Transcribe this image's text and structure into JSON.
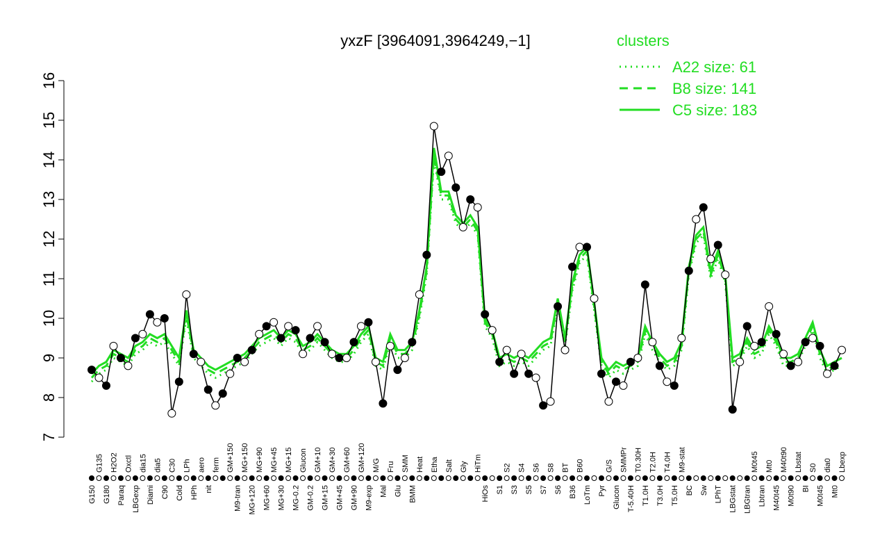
{
  "chart_data": {
    "type": "line",
    "title": "yxzF [3964091,3964249,−1]",
    "legend_title": "clusters",
    "categories": [
      "G150",
      "G135",
      "G180",
      "H2O2",
      "Paraq",
      "Oxctl",
      "LBGexp",
      "dia15",
      "Diami",
      "dia5",
      "C90",
      "C30",
      "Cold",
      "LPh",
      "HPh",
      "aero",
      "nit",
      "ferm",
      null,
      "GM+150",
      "M9-tran",
      "MG+150",
      "MG+120",
      "MG+90",
      "MG+60",
      "MG+45",
      "MG+30",
      "MG+15",
      "MG-0.2",
      "Glucon",
      "GM-0.2",
      "GM+10",
      "GM+15",
      "GM+30",
      "GM+45",
      "GM+60",
      "GM+90",
      "GM+120",
      "M9-exp",
      "M/G",
      "Mal",
      "Fru",
      "Glu",
      "SMM",
      "BMM",
      "Heat",
      null,
      "Etha",
      null,
      "Salt",
      null,
      "Gly",
      null,
      "HiTm",
      "HiOs",
      null,
      "S1",
      "S2",
      "S3",
      "S4",
      "S5",
      "S6",
      "S7",
      "S8",
      "S6",
      "BT",
      "B36",
      "B60",
      "LoTm",
      null,
      "Pyr",
      "G/S",
      "Glucon",
      "SMMPr",
      "T-5.40H",
      "T0.30H",
      "T1.0H",
      "T2.0H",
      "T3.0H",
      "T4.0H",
      "T5.0H",
      "M9-stat",
      "BC",
      null,
      "Sw",
      null,
      "LPhT",
      null,
      "LBGstat",
      null,
      "LBGtran",
      "M0t45",
      "Lbtran",
      "Mt0",
      "M40t45",
      "M40t90",
      "M0t90",
      "Lbstat",
      "BI",
      "S0",
      "M0t45",
      "dia0",
      "Mt0",
      "Lbexp"
    ],
    "values": [
      8.7,
      8.5,
      8.3,
      9.3,
      9.0,
      8.8,
      9.5,
      9.6,
      10.1,
      9.9,
      10.0,
      7.6,
      8.4,
      10.6,
      9.1,
      8.9,
      8.2,
      7.8,
      8.1,
      8.6,
      9.0,
      8.9,
      9.2,
      9.6,
      9.8,
      9.9,
      9.5,
      9.8,
      9.7,
      9.1,
      9.5,
      9.8,
      9.4,
      9.1,
      9.0,
      9.0,
      9.4,
      9.8,
      9.9,
      8.9,
      7.85,
      9.3,
      8.7,
      9.0,
      9.4,
      10.6,
      11.6,
      14.85,
      13.7,
      14.1,
      13.3,
      12.3,
      13.0,
      12.8,
      10.1,
      9.7,
      8.9,
      9.2,
      8.6,
      9.1,
      8.6,
      8.5,
      7.8,
      7.9,
      10.3,
      9.2,
      11.3,
      11.8,
      11.8,
      10.5,
      8.6,
      7.9,
      8.4,
      8.3,
      8.9,
      9.0,
      10.85,
      9.4,
      8.8,
      8.4,
      8.3,
      9.5,
      11.2,
      12.5,
      12.8,
      11.5,
      11.85,
      11.1,
      7.7,
      8.9,
      9.8,
      9.3,
      9.4,
      10.3,
      9.6,
      9.1,
      8.8,
      8.9,
      9.4,
      9.5,
      9.3,
      8.6,
      8.8,
      9.2
    ],
    "series": [
      {
        "name": "A22 size: 61",
        "color": "#22dd22",
        "dash": "dotted",
        "values": [
          8.4,
          8.6,
          8.7,
          9.0,
          8.9,
          8.8,
          9.1,
          9.2,
          9.4,
          9.3,
          9.4,
          9.1,
          8.8,
          10.0,
          9.0,
          8.8,
          8.6,
          8.5,
          8.6,
          8.7,
          8.8,
          8.9,
          9.1,
          9.3,
          9.4,
          9.5,
          9.3,
          9.5,
          9.4,
          9.1,
          9.2,
          9.4,
          9.2,
          9.0,
          8.9,
          8.9,
          9.1,
          9.4,
          9.6,
          8.8,
          8.7,
          9.4,
          9.0,
          9.0,
          9.2,
          10.0,
          11.1,
          14.0,
          13.0,
          13.0,
          12.4,
          12.2,
          12.4,
          12.1,
          9.8,
          9.5,
          8.8,
          8.9,
          8.8,
          8.9,
          8.8,
          9.0,
          9.2,
          9.3,
          10.3,
          9.3,
          10.7,
          11.4,
          11.6,
          10.2,
          8.8,
          8.5,
          8.7,
          8.6,
          8.7,
          8.8,
          9.6,
          9.2,
          8.9,
          8.7,
          8.8,
          9.2,
          11.1,
          11.9,
          12.1,
          11.0,
          11.5,
          10.9,
          8.8,
          8.9,
          9.3,
          9.0,
          9.1,
          9.6,
          9.3,
          8.8,
          8.8,
          8.9,
          9.3,
          9.7,
          9.0,
          8.6,
          8.7,
          8.8
        ]
      },
      {
        "name": "B8 size: 141",
        "color": "#22dd22",
        "dash": "dashed",
        "values": [
          8.5,
          8.7,
          8.8,
          9.1,
          9.0,
          8.9,
          9.2,
          9.3,
          9.5,
          9.4,
          9.5,
          9.2,
          8.9,
          10.1,
          9.1,
          8.9,
          8.7,
          8.6,
          8.7,
          8.8,
          8.9,
          9.0,
          9.2,
          9.4,
          9.5,
          9.6,
          9.4,
          9.6,
          9.5,
          9.2,
          9.3,
          9.5,
          9.3,
          9.1,
          9.0,
          9.0,
          9.2,
          9.5,
          9.7,
          8.9,
          8.8,
          9.5,
          9.1,
          9.1,
          9.3,
          10.1,
          11.2,
          14.1,
          13.1,
          13.1,
          12.5,
          12.3,
          12.5,
          12.2,
          9.9,
          9.6,
          8.9,
          9.0,
          8.9,
          9.0,
          8.9,
          9.1,
          9.3,
          9.4,
          10.4,
          9.4,
          10.8,
          11.5,
          11.7,
          10.3,
          8.9,
          8.6,
          8.8,
          8.7,
          8.8,
          8.9,
          9.7,
          9.3,
          9.0,
          8.8,
          8.9,
          9.3,
          11.2,
          12.0,
          12.2,
          11.1,
          11.6,
          11.0,
          8.9,
          9.0,
          9.4,
          9.1,
          9.2,
          9.7,
          9.4,
          8.9,
          8.9,
          9.0,
          9.4,
          9.8,
          9.1,
          8.7,
          8.8,
          8.9
        ]
      },
      {
        "name": "C5 size: 183",
        "color": "#22dd22",
        "dash": "solid",
        "values": [
          8.6,
          8.8,
          8.9,
          9.2,
          9.1,
          9.0,
          9.3,
          9.4,
          9.6,
          9.5,
          9.6,
          9.3,
          9.0,
          10.2,
          9.2,
          9.0,
          8.8,
          8.7,
          8.8,
          8.9,
          9.0,
          9.1,
          9.3,
          9.5,
          9.6,
          9.7,
          9.5,
          9.7,
          9.6,
          9.3,
          9.4,
          9.6,
          9.4,
          9.2,
          9.1,
          9.1,
          9.3,
          9.6,
          9.8,
          9.0,
          8.9,
          9.6,
          9.2,
          9.2,
          9.4,
          10.2,
          11.3,
          14.3,
          13.2,
          13.2,
          12.6,
          12.4,
          12.6,
          12.3,
          10.0,
          9.7,
          9.0,
          9.1,
          9.0,
          9.1,
          9.0,
          9.2,
          9.4,
          9.5,
          10.5,
          9.5,
          10.9,
          11.6,
          11.8,
          10.4,
          9.0,
          8.7,
          8.9,
          8.8,
          8.9,
          9.0,
          9.8,
          9.4,
          9.1,
          8.9,
          9.0,
          9.4,
          11.3,
          12.1,
          12.3,
          11.2,
          11.7,
          11.1,
          9.0,
          9.1,
          9.5,
          9.2,
          9.3,
          9.8,
          9.5,
          9.0,
          9.0,
          9.1,
          9.5,
          9.9,
          9.2,
          8.8,
          8.9,
          9.0
        ]
      }
    ],
    "color": "#000000",
    "ylim": [
      7,
      16
    ],
    "yticks": [
      7,
      8,
      9,
      10,
      11,
      12,
      13,
      14,
      15,
      16
    ]
  }
}
